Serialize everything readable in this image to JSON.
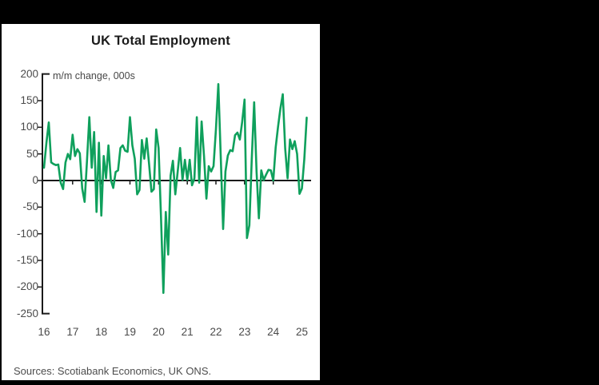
{
  "window": {
    "background_color": "#000000",
    "panel_background": "#ffffff"
  },
  "chart_data": {
    "type": "line",
    "title": "UK Total Employment",
    "annotation": "m/m change, 000s",
    "source_note": "Sources: Scotiabank Economics, UK ONS.",
    "xlabel": "",
    "ylabel": "",
    "grid": "off",
    "zero_line": true,
    "legend": "none",
    "ylim": [
      -250,
      200
    ],
    "y_ticks": [
      200,
      150,
      100,
      50,
      0,
      -50,
      -100,
      -150,
      -200,
      -250
    ],
    "x_ticks": [
      "16",
      "17",
      "18",
      "19",
      "20",
      "21",
      "22",
      "23",
      "24",
      "25"
    ],
    "series": [
      {
        "name": "UK total employment, m/m change (000s)",
        "color": "#0FA05C",
        "frequency": "monthly",
        "start": "2016-01",
        "end": "2025-03",
        "values": [
          24,
          70,
          109,
          34,
          31,
          29,
          30,
          -4,
          -16,
          34,
          50,
          40,
          86,
          46,
          59,
          51,
          -15,
          -40,
          35,
          119,
          24,
          91,
          -59,
          71,
          -66,
          46,
          4,
          66,
          1,
          -14,
          16,
          19,
          61,
          66,
          56,
          54,
          119,
          66,
          41,
          -26,
          -18,
          76,
          41,
          79,
          31,
          -21,
          -16,
          96,
          61,
          -68,
          -211,
          -59,
          -139,
          9,
          37,
          -26,
          17,
          61,
          1,
          39,
          1,
          39,
          -9,
          4,
          119,
          -4,
          111,
          46,
          -34,
          27,
          17,
          27,
          96,
          181,
          46,
          -91,
          17,
          47,
          57,
          55,
          85,
          90,
          77,
          110,
          152,
          -108,
          -84,
          40,
          147,
          17,
          -71,
          19,
          1,
          11,
          20,
          19,
          0,
          62,
          100,
          135,
          162,
          60,
          4,
          77,
          59,
          74,
          50,
          -25,
          -15,
          40,
          118
        ]
      }
    ],
    "axis_color": "#1a1a1a"
  }
}
